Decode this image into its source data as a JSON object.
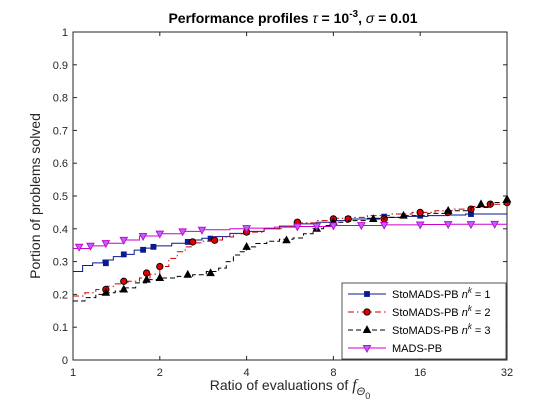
{
  "chart_data": {
    "type": "line",
    "title": {
      "prefix": "Performance profiles ",
      "tau_symbol": "τ",
      "tau_eq": " = 10",
      "tau_exp": "-3",
      "sep": ", ",
      "sigma_symbol": "σ",
      "sigma_eq": " = 0.01"
    },
    "ylabel": "Portion of problems solved",
    "xlabel": {
      "text": "Ratio of evaluations of ",
      "symbol": "f",
      "sub": "Θ",
      "subsub": "0"
    },
    "x_scale": "log2",
    "xlim": [
      1,
      32
    ],
    "ylim": [
      0,
      1
    ],
    "x_ticks": [
      1,
      2,
      4,
      8,
      16,
      32
    ],
    "x_tick_labels": [
      "1",
      "2",
      "4",
      "8",
      "16",
      "32"
    ],
    "y_ticks": [
      0,
      0.1,
      0.2,
      0.3,
      0.4,
      0.5,
      0.6,
      0.7,
      0.8,
      0.9,
      1
    ],
    "y_tick_labels": [
      "0",
      "0.1",
      "0.2",
      "0.3",
      "0.4",
      "0.5",
      "0.6",
      "0.7",
      "0.8",
      "0.9",
      "1"
    ],
    "grid": false,
    "legend_position": "bottom-right",
    "series": [
      {
        "name": "StoMADS-PB",
        "name_sup_base": "n",
        "name_sup": "k",
        "name_suffix": " = 1",
        "color": "#0a1a8f",
        "dash": "solid",
        "marker": "square",
        "x": [
          1,
          1.08,
          1.17,
          1.27,
          1.38,
          1.5,
          1.63,
          1.78,
          1.94,
          2.2,
          2.5,
          2.8,
          3.1,
          3.5,
          4.0,
          4.6,
          5.2,
          6.0,
          7.0,
          8.0,
          9.0,
          10.5,
          12,
          14,
          17,
          20,
          23,
          26,
          32
        ],
        "y": [
          0.27,
          0.288,
          0.296,
          0.305,
          0.315,
          0.322,
          0.335,
          0.341,
          0.348,
          0.356,
          0.366,
          0.371,
          0.376,
          0.386,
          0.392,
          0.4,
          0.408,
          0.415,
          0.42,
          0.425,
          0.43,
          0.432,
          0.435,
          0.438,
          0.44,
          0.442,
          0.445,
          0.445,
          0.445
        ],
        "marker_x": [
          1.3,
          1.5,
          1.75,
          1.9,
          2.5,
          3.0,
          4.0,
          6.0,
          8.0,
          9.0,
          12,
          16,
          24
        ],
        "marker_y": [
          0.295,
          0.322,
          0.336,
          0.345,
          0.36,
          0.37,
          0.39,
          0.415,
          0.425,
          0.43,
          0.437,
          0.44,
          0.445
        ]
      },
      {
        "name": "StoMADS-PB",
        "name_sup_base": "n",
        "name_sup": "k",
        "name_suffix": " = 2",
        "color": "#cc0000",
        "dash": "dashdot",
        "marker": "circle",
        "x": [
          1,
          1.1,
          1.2,
          1.3,
          1.4,
          1.55,
          1.7,
          1.85,
          2.0,
          2.15,
          2.3,
          2.45,
          2.6,
          2.8,
          3.0,
          3.3,
          3.6,
          4.0,
          4.6,
          5.3,
          6.0,
          7.0,
          8.0,
          9.0,
          10.5,
          12.5,
          15,
          18,
          21,
          24,
          28,
          32
        ],
        "y": [
          0.195,
          0.205,
          0.215,
          0.225,
          0.232,
          0.24,
          0.25,
          0.262,
          0.285,
          0.31,
          0.33,
          0.345,
          0.357,
          0.362,
          0.366,
          0.375,
          0.385,
          0.39,
          0.4,
          0.408,
          0.418,
          0.425,
          0.432,
          0.435,
          0.44,
          0.445,
          0.45,
          0.455,
          0.46,
          0.468,
          0.475,
          0.48
        ],
        "marker_x": [
          1.3,
          1.5,
          1.8,
          2.0,
          2.6,
          3.1,
          4.0,
          6.0,
          8.0,
          9.0,
          12,
          16,
          20,
          24,
          28,
          32
        ],
        "marker_y": [
          0.215,
          0.24,
          0.265,
          0.285,
          0.36,
          0.365,
          0.39,
          0.42,
          0.43,
          0.43,
          0.43,
          0.45,
          0.45,
          0.46,
          0.475,
          0.48
        ]
      },
      {
        "name": "StoMADS-PB",
        "name_sup_base": "n",
        "name_sup": "k",
        "name_suffix": " = 3",
        "color": "#000000",
        "dash": "dashed",
        "marker": "triangle",
        "x": [
          1,
          1.1,
          1.2,
          1.3,
          1.4,
          1.5,
          1.65,
          1.8,
          2.0,
          2.3,
          2.6,
          2.9,
          3.2,
          3.4,
          3.6,
          3.8,
          4.0,
          4.3,
          4.7,
          5.2,
          5.8,
          6.3,
          6.8,
          7.4,
          8.0,
          9.0,
          10.5,
          12,
          14,
          17,
          20,
          24,
          28,
          32
        ],
        "y": [
          0.18,
          0.19,
          0.2,
          0.205,
          0.21,
          0.22,
          0.235,
          0.245,
          0.25,
          0.255,
          0.26,
          0.27,
          0.28,
          0.3,
          0.32,
          0.33,
          0.345,
          0.355,
          0.362,
          0.368,
          0.372,
          0.385,
          0.4,
          0.41,
          0.42,
          0.425,
          0.43,
          0.435,
          0.44,
          0.447,
          0.455,
          0.465,
          0.48,
          0.49
        ],
        "marker_x": [
          1.3,
          1.5,
          1.8,
          2.0,
          2.5,
          3.0,
          4.0,
          5.5,
          7.0,
          8.0,
          11,
          14,
          20,
          26,
          32
        ],
        "marker_y": [
          0.205,
          0.215,
          0.245,
          0.25,
          0.26,
          0.265,
          0.345,
          0.365,
          0.4,
          0.42,
          0.43,
          0.44,
          0.455,
          0.475,
          0.49
        ]
      },
      {
        "name": "MADS-PB",
        "color": "#cc00cc",
        "dash": "solid",
        "marker": "triangle-down",
        "x": [
          1,
          1.15,
          1.3,
          1.5,
          1.7,
          2.0,
          2.4,
          2.8,
          3.5,
          4.0,
          5.0,
          6.0,
          8.0,
          12,
          16,
          20,
          24,
          32
        ],
        "y": [
          0.34,
          0.348,
          0.356,
          0.366,
          0.378,
          0.385,
          0.392,
          0.397,
          0.4,
          0.402,
          0.405,
          0.407,
          0.41,
          0.412,
          0.413,
          0.414,
          0.414,
          0.415
        ],
        "marker_x": [
          1.05,
          1.15,
          1.3,
          1.5,
          1.75,
          2.0,
          2.4,
          2.8,
          4.0,
          6.0,
          7.0,
          8.0,
          10,
          12,
          16,
          20,
          24,
          29
        ],
        "marker_y": [
          0.345,
          0.348,
          0.356,
          0.366,
          0.378,
          0.385,
          0.392,
          0.397,
          0.402,
          0.407,
          0.408,
          0.41,
          0.411,
          0.412,
          0.413,
          0.414,
          0.414,
          0.415
        ]
      }
    ]
  }
}
